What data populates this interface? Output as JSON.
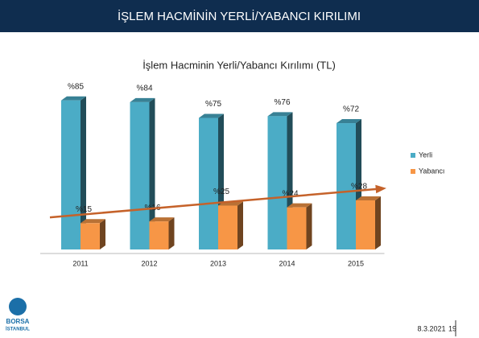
{
  "header": {
    "title": "İŞLEM HACMİNİN YERLİ/YABANCI KIRILIMI"
  },
  "chart_data": {
    "type": "bar",
    "title": "İşlem Hacminin Yerli/Yabancı Kırılımı (TL)",
    "categories": [
      "2011",
      "2012",
      "2013",
      "2014",
      "2015"
    ],
    "series": [
      {
        "name": "Yerli",
        "color": "#4bacc6",
        "values": [
          85,
          84,
          75,
          76,
          72
        ],
        "value_labels": [
          "%85",
          "%84",
          "%75",
          "%76",
          "%72"
        ]
      },
      {
        "name": "Yabancı",
        "color": "#f79646",
        "values": [
          15,
          16,
          25,
          24,
          28
        ],
        "value_labels": [
          "%15",
          "%16",
          "%25",
          "%24",
          "%28"
        ]
      }
    ],
    "legend": "right"
  },
  "footer": {
    "logo_top": "BORSA",
    "logo_bottom": "İSTANBUL",
    "date": "8.3.2021",
    "page": "19"
  }
}
